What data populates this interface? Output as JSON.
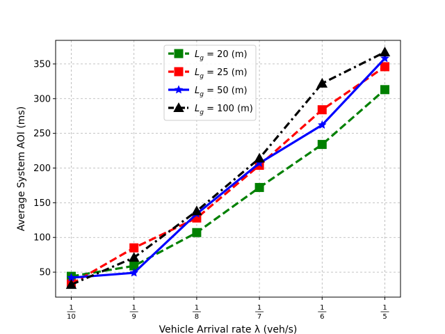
{
  "chart_data": {
    "type": "line",
    "xlabel": "Vehicle Arrival rate λ (veh/s)",
    "ylabel": "Average System AOI (ms)",
    "x": [
      {
        "num": "1",
        "den": "10",
        "value": 0.1
      },
      {
        "num": "1",
        "den": "9",
        "value": 0.1111
      },
      {
        "num": "1",
        "den": "8",
        "value": 0.125
      },
      {
        "num": "1",
        "den": "7",
        "value": 0.1429
      },
      {
        "num": "1",
        "den": "6",
        "value": 0.1667
      },
      {
        "num": "1",
        "den": "5",
        "value": 0.2
      }
    ],
    "ylim": [
      14,
      384
    ],
    "yticks": [
      50,
      100,
      150,
      200,
      250,
      300,
      350
    ],
    "grid": true,
    "legend_position": "top-center",
    "series": [
      {
        "name_main": "L",
        "name_sub": "g",
        "name_rest": " = 20 (m)",
        "color": "#008000",
        "dash": "dashed",
        "marker": "square",
        "values": [
          44,
          59,
          107,
          172,
          234,
          313
        ]
      },
      {
        "name_main": "L",
        "name_sub": "g",
        "name_rest": " = 25 (m)",
        "color": "#ff0000",
        "dash": "dashed",
        "marker": "square",
        "values": [
          33,
          85,
          128,
          204,
          284,
          346
        ]
      },
      {
        "name_main": "L",
        "name_sub": "g",
        "name_rest": " = 50 (m)",
        "color": "#0000ff",
        "dash": "solid",
        "marker": "star",
        "values": [
          42,
          49,
          134,
          207,
          262,
          358
        ]
      },
      {
        "name_main": "L",
        "name_sub": "g",
        "name_rest": " = 100 (m)",
        "color": "#000000",
        "dash": "dashdot",
        "marker": "triangle",
        "values": [
          32,
          71,
          138,
          214,
          322,
          367
        ]
      }
    ]
  }
}
